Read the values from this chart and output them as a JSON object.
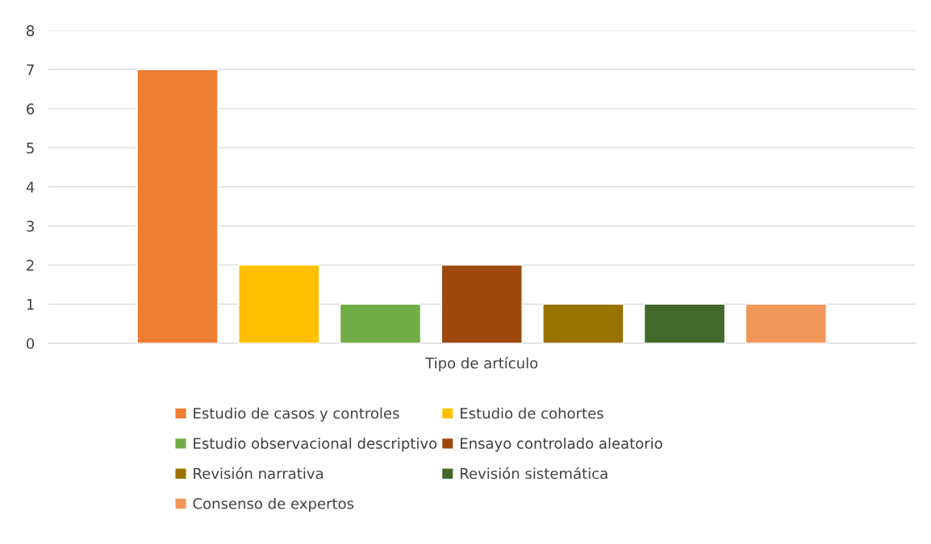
{
  "chart_data": {
    "type": "bar",
    "categories": [
      "Tipo de artículo"
    ],
    "series": [
      {
        "name": "Estudio de casos y controles",
        "color": "#ed7d31",
        "values": [
          7
        ]
      },
      {
        "name": "Estudio de cohortes",
        "color": "#ffc000",
        "values": [
          2
        ]
      },
      {
        "name": "Estudio observacional descriptivo",
        "color": "#70ad47",
        "values": [
          1
        ]
      },
      {
        "name": "Ensayo controlado aleatorio",
        "color": "#9e480e",
        "values": [
          2
        ]
      },
      {
        "name": "Revisión narrativa",
        "color": "#997300",
        "values": [
          1
        ]
      },
      {
        "name": "Revisión sistemática",
        "color": "#43682b",
        "values": [
          1
        ]
      },
      {
        "name": "Consenso de expertos",
        "color": "#f1975a",
        "values": [
          1
        ]
      }
    ],
    "ylim": [
      0,
      8
    ],
    "yticks": [
      0,
      1,
      2,
      3,
      4,
      5,
      6,
      7,
      8
    ],
    "grid": "y",
    "legend": "bottom"
  }
}
